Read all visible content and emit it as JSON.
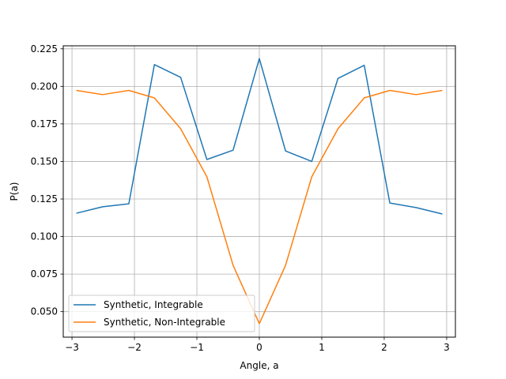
{
  "chart_data": {
    "type": "line",
    "xlabel": "Angle, a",
    "ylabel": "P(a)",
    "xlim": [
      -3.14,
      3.14
    ],
    "ylim": [
      0.033,
      0.227
    ],
    "xticks": [
      -3,
      -2,
      -1,
      0,
      1,
      2,
      3
    ],
    "xtick_labels": [
      "−3",
      "−2",
      "−1",
      "0",
      "1",
      "2",
      "3"
    ],
    "yticks": [
      0.05,
      0.075,
      0.1,
      0.125,
      0.15,
      0.175,
      0.2,
      0.225
    ],
    "ytick_labels": [
      "0.050",
      "0.075",
      "0.100",
      "0.125",
      "0.150",
      "0.175",
      "0.200",
      "0.225"
    ],
    "grid": true,
    "legend_position": "lower-left",
    "x": [
      -2.93,
      -2.51,
      -2.09,
      -1.68,
      -1.26,
      -0.84,
      -0.42,
      0.0,
      0.42,
      0.84,
      1.26,
      1.68,
      2.09,
      2.51,
      2.93
    ],
    "series": [
      {
        "name": "Synthetic, Integrable",
        "color": "#1f77b4",
        "values": [
          0.1155,
          0.1198,
          0.1218,
          0.2145,
          0.206,
          0.1513,
          0.1575,
          0.2185,
          0.157,
          0.15,
          0.2053,
          0.214,
          0.1223,
          0.1193,
          0.115
        ]
      },
      {
        "name": "Synthetic, Non-Integrable",
        "color": "#ff7f0e",
        "values": [
          0.1973,
          0.1945,
          0.1973,
          0.1923,
          0.1718,
          0.1398,
          0.0808,
          0.042,
          0.0808,
          0.1398,
          0.1718,
          0.1923,
          0.1973,
          0.1945,
          0.1973
        ]
      }
    ]
  }
}
